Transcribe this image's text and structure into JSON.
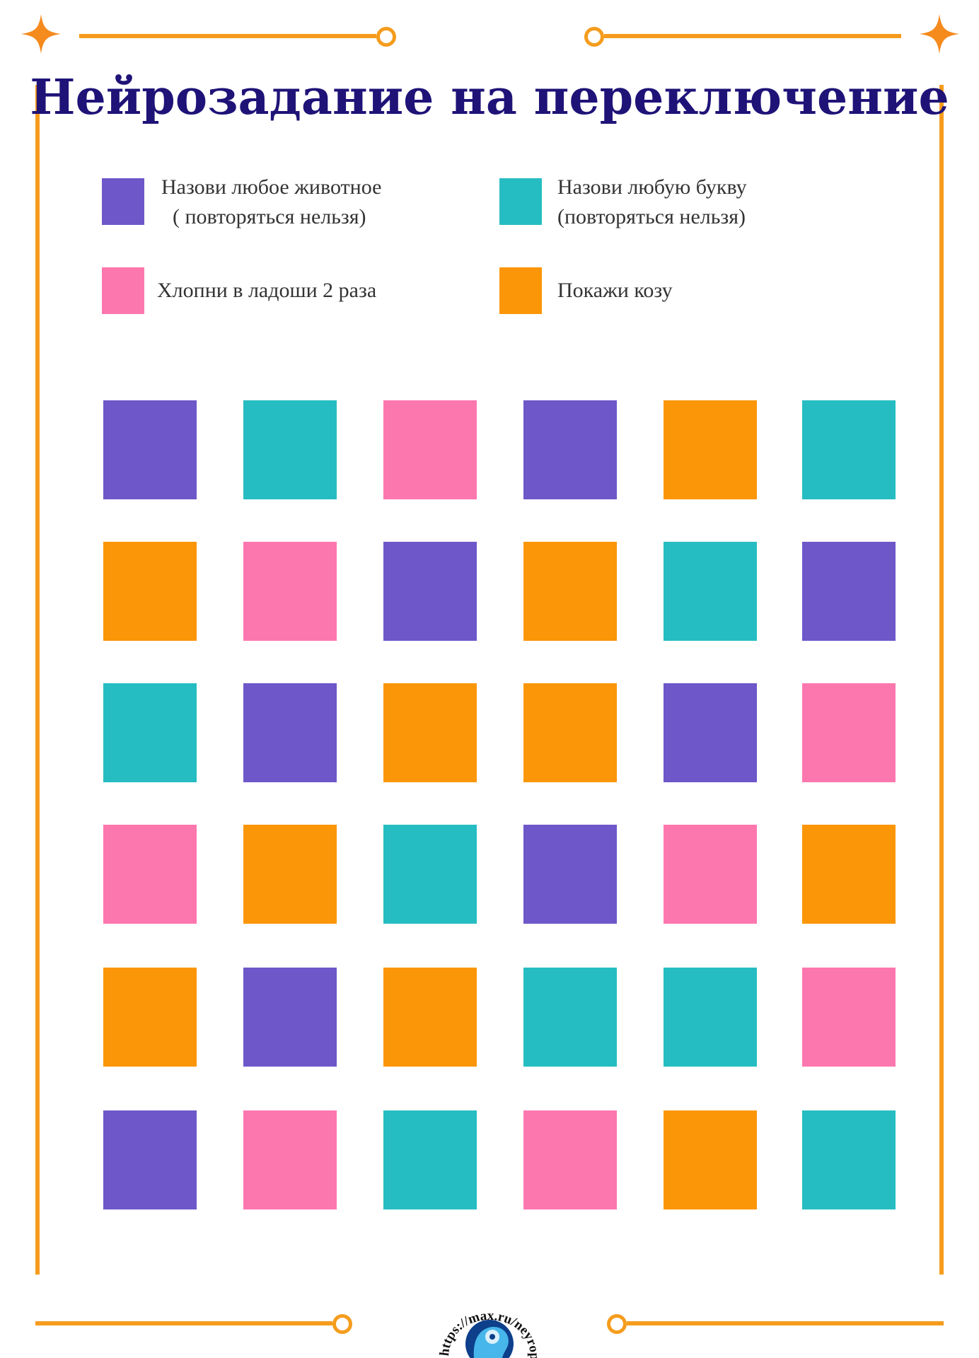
{
  "title": "Нейрозадание на переключение",
  "colors": {
    "purple": "#6e57c9",
    "teal": "#26bdc2",
    "pink": "#fd77af",
    "orange": "#fb9608",
    "frame": "#f59c1d",
    "title": "#1f1378"
  },
  "legend": [
    {
      "color": "purple",
      "line1": "Назови любое животное",
      "line2": "( повторяться нельзя)"
    },
    {
      "color": "teal",
      "line1": "Назови любую букву",
      "line2": "(повторяться нельзя)"
    },
    {
      "color": "pink",
      "line1": "Хлопни в ладоши 2 раза",
      "line2": ""
    },
    {
      "color": "orange",
      "line1": "Покажи козу",
      "line2": ""
    }
  ],
  "grid": [
    [
      "purple",
      "teal",
      "pink",
      "purple",
      "orange",
      "teal"
    ],
    [
      "orange",
      "pink",
      "purple",
      "orange",
      "teal",
      "purple"
    ],
    [
      "teal",
      "purple",
      "orange",
      "orange",
      "purple",
      "pink"
    ],
    [
      "pink",
      "orange",
      "teal",
      "purple",
      "pink",
      "orange"
    ],
    [
      "orange",
      "purple",
      "orange",
      "teal",
      "teal",
      "pink"
    ],
    [
      "purple",
      "pink",
      "teal",
      "pink",
      "orange",
      "teal"
    ]
  ],
  "footer": {
    "url": "https://max.ru/neyropsychology",
    "logo_icon": "brain-head-icon"
  }
}
